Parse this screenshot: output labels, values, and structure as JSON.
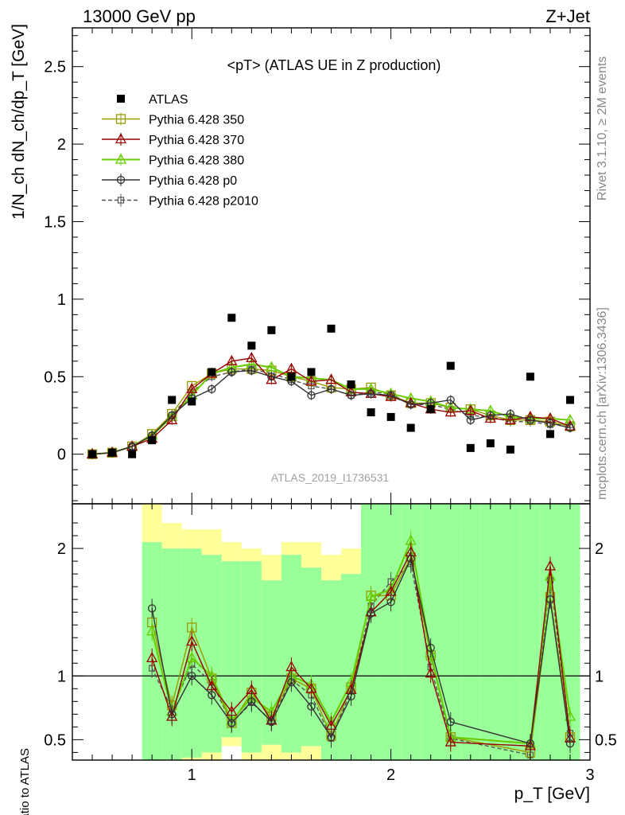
{
  "header": {
    "left": "13000 GeV pp",
    "right": "Z+Jet"
  },
  "side_labels": {
    "rivet": "Rivet 3.1.10, ≥ 2M events",
    "mcplots": "mcplots.cern.ch [arXiv:1306.3436]"
  },
  "chart_data": [
    {
      "type": "line",
      "title": "<pT> (ATLAS UE in Z production)",
      "watermark": "ATLAS_2019_I1736531",
      "xlabel": "p_T [GeV]",
      "ylabel": "1/N_ch dN_ch/dp_T [GeV]",
      "xlim": [
        0.4,
        3.0
      ],
      "ylim": [
        -0.32,
        2.75
      ],
      "yticks": [
        0,
        0.5,
        1,
        1.5,
        2,
        2.5
      ],
      "ytick_labels": [
        "0",
        "0.5",
        "1",
        "1.5",
        "2",
        "2.5"
      ],
      "legend_position": "top-left",
      "x": [
        0.5,
        0.6,
        0.7,
        0.8,
        0.9,
        1.0,
        1.1,
        1.2,
        1.3,
        1.4,
        1.5,
        1.6,
        1.7,
        1.8,
        1.9,
        2.0,
        2.1,
        2.2,
        2.3,
        2.4,
        2.5,
        2.6,
        2.7,
        2.8,
        2.9
      ],
      "series": [
        {
          "name": "ATLAS",
          "color": "#000000",
          "marker": "filled-square",
          "values": [
            0.0,
            0.01,
            0.0,
            0.09,
            0.35,
            0.34,
            0.53,
            0.88,
            0.7,
            0.8,
            0.5,
            0.53,
            0.81,
            0.45,
            0.27,
            0.24,
            0.17,
            0.29,
            0.57,
            0.04,
            0.07,
            0.03,
            0.5,
            0.13,
            0.35
          ]
        },
        {
          "name": "Pythia 6.428 350",
          "color": "#999900",
          "marker": "open-square",
          "dash": "solid",
          "values": [
            0.0,
            0.01,
            0.05,
            0.13,
            0.26,
            0.44,
            0.52,
            0.55,
            0.55,
            0.54,
            0.5,
            0.47,
            0.43,
            0.42,
            0.43,
            0.38,
            0.33,
            0.33,
            0.3,
            0.29,
            0.25,
            0.22,
            0.22,
            0.21,
            0.18
          ]
        },
        {
          "name": "Pythia 6.428 370",
          "color": "#990000",
          "marker": "open-triangle",
          "dash": "solid",
          "values": [
            0.0,
            0.01,
            0.05,
            0.1,
            0.22,
            0.42,
            0.52,
            0.6,
            0.62,
            0.48,
            0.55,
            0.47,
            0.48,
            0.4,
            0.39,
            0.37,
            0.33,
            0.29,
            0.27,
            0.28,
            0.23,
            0.22,
            0.24,
            0.23,
            0.18
          ]
        },
        {
          "name": "Pythia 6.428 380",
          "color": "#66cc00",
          "marker": "open-triangle",
          "dash": "solid",
          "values": [
            0.0,
            0.01,
            0.05,
            0.12,
            0.24,
            0.38,
            0.52,
            0.56,
            0.58,
            0.56,
            0.5,
            0.49,
            0.48,
            0.42,
            0.42,
            0.39,
            0.36,
            0.34,
            0.3,
            0.29,
            0.28,
            0.24,
            0.23,
            0.23,
            0.22
          ]
        },
        {
          "name": "Pythia 6.428 p0",
          "color": "#333333",
          "marker": "open-circle",
          "dash": "solid",
          "values": [
            0.0,
            0.01,
            0.05,
            0.12,
            0.25,
            0.36,
            0.42,
            0.53,
            0.54,
            0.5,
            0.47,
            0.38,
            0.42,
            0.38,
            0.39,
            0.38,
            0.32,
            0.33,
            0.35,
            0.22,
            0.25,
            0.26,
            0.22,
            0.2,
            0.17
          ]
        },
        {
          "name": "Pythia 6.428 p2010",
          "color": "#555555",
          "marker": "open-square-small",
          "dash": "dashed",
          "values": [
            0.0,
            0.01,
            0.05,
            0.12,
            0.25,
            0.4,
            0.5,
            0.53,
            0.55,
            0.52,
            0.48,
            0.44,
            0.42,
            0.38,
            0.4,
            0.39,
            0.32,
            0.32,
            0.29,
            0.25,
            0.24,
            0.21,
            0.21,
            0.19,
            0.19
          ]
        }
      ]
    },
    {
      "type": "line",
      "ylabel": "Ratio to ATLAS",
      "xlim": [
        0.4,
        3.0
      ],
      "ylim": [
        0.34,
        2.35
      ],
      "xticks": [
        1,
        2,
        3
      ],
      "xtick_labels": [
        "1",
        "2",
        "3"
      ],
      "yticks": [
        0.5,
        1,
        2
      ],
      "ytick_labels": [
        "0.5",
        "1",
        "2"
      ],
      "reference_line": 1,
      "band_colors": {
        "inner": "#99ff99",
        "outer": "#ffff99"
      },
      "x": [
        0.8,
        0.9,
        1.0,
        1.1,
        1.2,
        1.3,
        1.4,
        1.5,
        1.6,
        1.7,
        1.8,
        1.9,
        2.0,
        2.1,
        2.2,
        2.3,
        2.7,
        2.8,
        2.9
      ],
      "band_edges": [
        0.75,
        0.85,
        0.95,
        1.05,
        1.15,
        1.25,
        1.35,
        1.45,
        1.55,
        1.65,
        1.75,
        1.85,
        1.95,
        2.05,
        2.15,
        2.25,
        2.35,
        2.45,
        2.55,
        2.65,
        2.75,
        2.85,
        2.95
      ],
      "band_inner_low": [
        0.34,
        0.34,
        0.36,
        0.4,
        0.52,
        0.4,
        0.46,
        0.4,
        0.45,
        0.34,
        0.34,
        0.34,
        0.34,
        0.34,
        0.34,
        0.34,
        0.34,
        0.34,
        0.34,
        0.34,
        0.34,
        0.34
      ],
      "band_inner_high": [
        2.05,
        2.0,
        2.0,
        1.95,
        1.9,
        1.9,
        1.75,
        1.95,
        1.85,
        1.75,
        1.8,
        2.35,
        2.35,
        2.35,
        2.35,
        2.35,
        2.35,
        2.35,
        2.35,
        2.35,
        2.35,
        2.35
      ],
      "band_outer_low": [
        0.34,
        0.34,
        0.34,
        0.34,
        0.45,
        0.34,
        0.34,
        0.34,
        0.34,
        0.34,
        0.34,
        0.34,
        0.34,
        0.34,
        0.34,
        0.34,
        0.34,
        0.34,
        0.34,
        0.34,
        0.34,
        0.34
      ],
      "band_outer_high": [
        2.35,
        2.2,
        2.15,
        2.15,
        2.05,
        2.0,
        1.95,
        2.05,
        2.05,
        1.95,
        2.0,
        2.35,
        2.2,
        2.35,
        2.35,
        2.15,
        2.35,
        2.35,
        2.35,
        2.35,
        2.35,
        2.2
      ],
      "series": [
        {
          "name": "Pythia 6.428 350",
          "color": "#999900",
          "values": [
            1.42,
            0.77,
            1.38,
            0.98,
            0.63,
            0.87,
            0.68,
            0.98,
            0.9,
            0.53,
            0.91,
            1.63,
            1.63,
            1.93,
            1.16,
            0.52,
            0.4,
            1.62,
            0.52
          ]
        },
        {
          "name": "Pythia 6.428 370",
          "color": "#990000",
          "values": [
            1.14,
            0.68,
            1.27,
            0.92,
            0.72,
            0.89,
            0.65,
            1.07,
            0.9,
            0.61,
            0.89,
            1.5,
            1.66,
            1.97,
            1.02,
            0.48,
            0.45,
            1.86,
            0.51
          ]
        },
        {
          "name": "Pythia 6.428 380",
          "color": "#66cc00",
          "values": [
            1.35,
            0.72,
            1.14,
            1.0,
            0.65,
            0.83,
            0.72,
            1.0,
            0.93,
            0.64,
            0.95,
            1.62,
            1.68,
            2.06,
            1.18,
            0.52,
            0.47,
            1.78,
            0.68
          ]
        },
        {
          "name": "Pythia 6.428 p0",
          "color": "#333333",
          "values": [
            1.53,
            0.7,
            1.0,
            0.85,
            0.63,
            0.8,
            0.64,
            0.95,
            0.76,
            0.52,
            0.84,
            1.49,
            1.58,
            1.92,
            1.22,
            0.64,
            0.47,
            1.6,
            0.47
          ]
        },
        {
          "name": "Pythia 6.428 p2010",
          "color": "#555555",
          "values": [
            1.06,
            0.74,
            1.09,
            0.95,
            0.63,
            0.79,
            0.65,
            0.97,
            0.85,
            0.51,
            0.88,
            1.55,
            1.74,
            1.88,
            1.07,
            0.51,
            0.38,
            1.75,
            0.55
          ]
        }
      ]
    }
  ]
}
